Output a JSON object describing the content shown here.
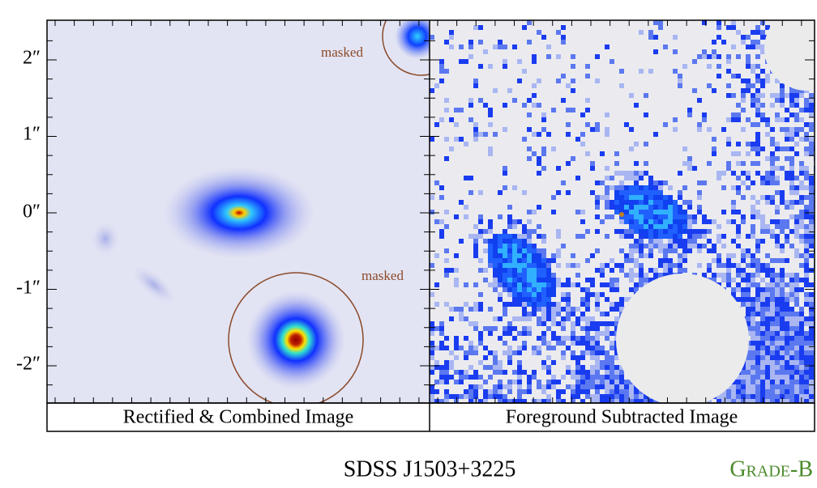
{
  "panels": [
    {
      "caption": "Rectified & Combined Image",
      "annotations": [
        "masked",
        "masked"
      ]
    },
    {
      "caption": "Foreground Subtracted Image"
    }
  ],
  "y_axis": {
    "tick_labels": [
      "2″",
      "1″",
      "0″",
      "-1″",
      "-2″"
    ]
  },
  "object_name": "SDSS J1503+3225",
  "grade": "Grade-B"
}
